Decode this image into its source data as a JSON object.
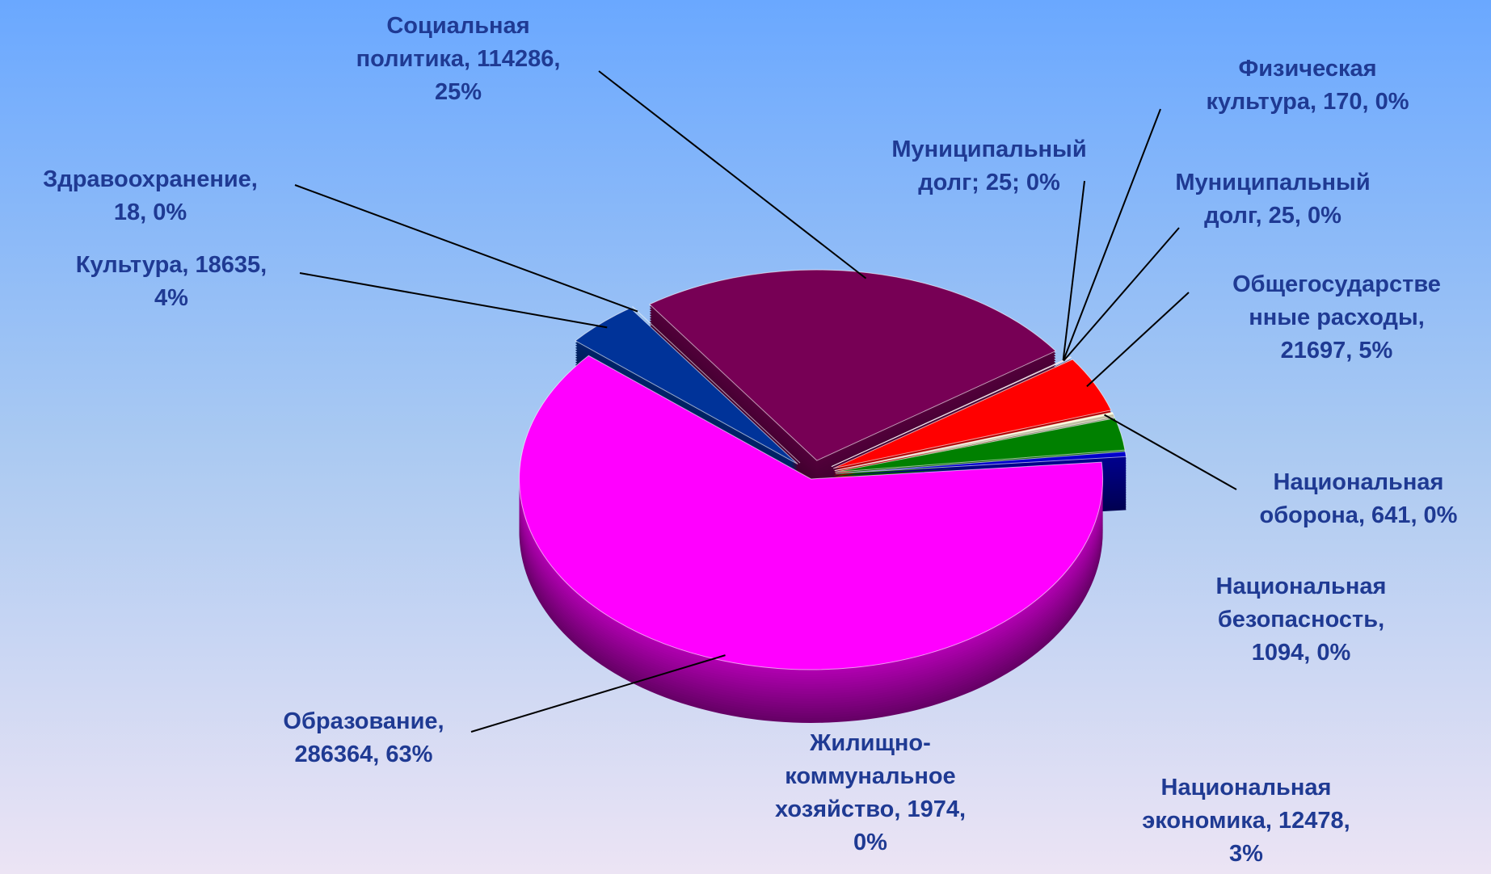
{
  "chart_data": {
    "type": "pie3d",
    "categories": [
      "Социальная политика",
      "Муниципальный долг",
      "Физическая культура",
      "Муниципальный долг",
      "Общегосударственные расходы",
      "Национальная оборона",
      "Национальная безопасность",
      "Национальная экономика",
      "Жилищно-коммунальное хозяйство",
      "Образование",
      "Культура",
      "Здравоохранение"
    ],
    "values": [
      114286,
      25,
      170,
      25,
      21697,
      641,
      1094,
      12478,
      1974,
      286364,
      18635,
      18
    ],
    "value_labels": [
      "Социальная\nполитика, 114286,\n25%",
      "Муниципальный\nдолг; 25; 0%",
      "Физическая\nкультура, 170, 0%",
      "Муниципальный\nдолг, 25, 0%",
      "Общегосударстве\nнные расходы,\n21697, 5%",
      "Национальная\nоборона, 641, 0%",
      "Национальная\nбезопасность,\n1094, 0%",
      "Национальная\nэкономика, 12478,\n3%",
      "Жилищно-\nкоммунальное\nхозяйство, 1974,\n0%",
      "Образование,\n286364, 63%",
      "Культура, 18635,\n4%",
      "Здравоохранение,\n18, 0%"
    ],
    "colors": [
      "#770055",
      "#9a1fa0",
      "#b05050",
      "#800000",
      "#ff0000",
      "#ffffcc",
      "#c0c0a0",
      "#008000",
      "#0000cc",
      "#ff00ff",
      "#003399",
      "#006600"
    ]
  }
}
